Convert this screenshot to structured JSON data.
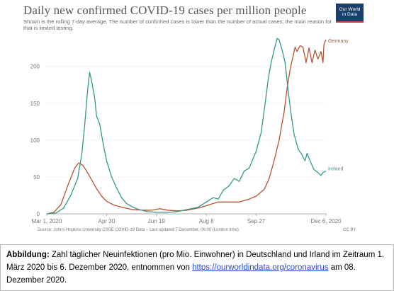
{
  "chart_data": {
    "type": "line",
    "title": "Daily new confirmed COVID-19 cases per million people",
    "subtitle": "Shown is the rolling 7-day average. The number of confirmed cases is lower than the number of actual cases; the main reason for that is limited testing.",
    "xlabel": "",
    "ylabel": "",
    "x_domain": [
      "2020-03-01",
      "2020-12-06"
    ],
    "ylim": [
      0,
      240
    ],
    "x_ticks": [
      "Mar 1, 2020",
      "Apr 30",
      "Jun 19",
      "Aug 8",
      "Sep 27",
      "Dec 6, 2020"
    ],
    "x_tick_dates": [
      "2020-03-01",
      "2020-04-30",
      "2020-06-19",
      "2020-08-08",
      "2020-09-27",
      "2020-12-06"
    ],
    "y_ticks": [
      0,
      50,
      100,
      150,
      200
    ],
    "grid": true,
    "legend": "line-end labels",
    "series": [
      {
        "name": "Germany",
        "color": "#b5542d",
        "points": [
          [
            "2020-03-01",
            0
          ],
          [
            "2020-03-08",
            2
          ],
          [
            "2020-03-15",
            12
          ],
          [
            "2020-03-22",
            38
          ],
          [
            "2020-03-29",
            62
          ],
          [
            "2020-04-02",
            69
          ],
          [
            "2020-04-06",
            66
          ],
          [
            "2020-04-10",
            58
          ],
          [
            "2020-04-15",
            46
          ],
          [
            "2020-04-20",
            34
          ],
          [
            "2020-04-25",
            24
          ],
          [
            "2020-04-30",
            17
          ],
          [
            "2020-05-07",
            12
          ],
          [
            "2020-05-15",
            9
          ],
          [
            "2020-05-25",
            6
          ],
          [
            "2020-06-05",
            5
          ],
          [
            "2020-06-15",
            5
          ],
          [
            "2020-06-22",
            7
          ],
          [
            "2020-06-30",
            5
          ],
          [
            "2020-07-10",
            4
          ],
          [
            "2020-07-20",
            5
          ],
          [
            "2020-07-31",
            8
          ],
          [
            "2020-08-08",
            11
          ],
          [
            "2020-08-20",
            16
          ],
          [
            "2020-08-31",
            16
          ],
          [
            "2020-09-10",
            16
          ],
          [
            "2020-09-20",
            20
          ],
          [
            "2020-09-27",
            24
          ],
          [
            "2020-10-05",
            33
          ],
          [
            "2020-10-10",
            48
          ],
          [
            "2020-10-15",
            72
          ],
          [
            "2020-10-20",
            100
          ],
          [
            "2020-10-25",
            138
          ],
          [
            "2020-10-28",
            170
          ],
          [
            "2020-10-31",
            195
          ],
          [
            "2020-11-02",
            208
          ],
          [
            "2020-11-05",
            226
          ],
          [
            "2020-11-07",
            220
          ],
          [
            "2020-11-10",
            228
          ],
          [
            "2020-11-13",
            226
          ],
          [
            "2020-11-16",
            205
          ],
          [
            "2020-11-19",
            225
          ],
          [
            "2020-11-22",
            205
          ],
          [
            "2020-11-25",
            222
          ],
          [
            "2020-11-28",
            210
          ],
          [
            "2020-12-01",
            220
          ],
          [
            "2020-12-03",
            205
          ],
          [
            "2020-12-04",
            230
          ],
          [
            "2020-12-06",
            236
          ]
        ]
      },
      {
        "name": "Ireland",
        "color": "#33998a",
        "points": [
          [
            "2020-03-01",
            0
          ],
          [
            "2020-03-10",
            1
          ],
          [
            "2020-03-18",
            8
          ],
          [
            "2020-03-25",
            25
          ],
          [
            "2020-04-01",
            48
          ],
          [
            "2020-04-05",
            80
          ],
          [
            "2020-04-08",
            120
          ],
          [
            "2020-04-11",
            168
          ],
          [
            "2020-04-13",
            192
          ],
          [
            "2020-04-15",
            180
          ],
          [
            "2020-04-18",
            158
          ],
          [
            "2020-04-20",
            132
          ],
          [
            "2020-04-23",
            122
          ],
          [
            "2020-04-27",
            92
          ],
          [
            "2020-04-30",
            72
          ],
          [
            "2020-05-05",
            50
          ],
          [
            "2020-05-10",
            35
          ],
          [
            "2020-05-15",
            22
          ],
          [
            "2020-05-20",
            14
          ],
          [
            "2020-05-25",
            10
          ],
          [
            "2020-06-01",
            6
          ],
          [
            "2020-06-10",
            3
          ],
          [
            "2020-06-19",
            2
          ],
          [
            "2020-07-01",
            2
          ],
          [
            "2020-07-10",
            3
          ],
          [
            "2020-07-20",
            6
          ],
          [
            "2020-07-31",
            9
          ],
          [
            "2020-08-08",
            16
          ],
          [
            "2020-08-15",
            22
          ],
          [
            "2020-08-20",
            20
          ],
          [
            "2020-08-25",
            32
          ],
          [
            "2020-08-31",
            38
          ],
          [
            "2020-09-05",
            48
          ],
          [
            "2020-09-10",
            44
          ],
          [
            "2020-09-15",
            58
          ],
          [
            "2020-09-20",
            62
          ],
          [
            "2020-09-27",
            85
          ],
          [
            "2020-10-02",
            110
          ],
          [
            "2020-10-06",
            150
          ],
          [
            "2020-10-09",
            182
          ],
          [
            "2020-10-12",
            205
          ],
          [
            "2020-10-15",
            222
          ],
          [
            "2020-10-18",
            238
          ],
          [
            "2020-10-20",
            236
          ],
          [
            "2020-10-23",
            222
          ],
          [
            "2020-10-26",
            205
          ],
          [
            "2020-10-29",
            168
          ],
          [
            "2020-11-01",
            135
          ],
          [
            "2020-11-04",
            108
          ],
          [
            "2020-11-08",
            88
          ],
          [
            "2020-11-12",
            80
          ],
          [
            "2020-11-15",
            72
          ],
          [
            "2020-11-17",
            82
          ],
          [
            "2020-11-20",
            72
          ],
          [
            "2020-11-24",
            60
          ],
          [
            "2020-11-28",
            56
          ],
          [
            "2020-12-01",
            52
          ],
          [
            "2020-12-03",
            56
          ],
          [
            "2020-12-06",
            58
          ]
        ]
      }
    ]
  },
  "logo": {
    "line1": "Our World",
    "line2": "in Data"
  },
  "source": "Source: Johns Hopkins University CSSE COVID-19 Data – Last updated 7 December, 06:00 (London time)",
  "license": "CC BY",
  "caption": {
    "label": "Abbildung:",
    "text_before_link": " Zahl täglicher Neuinfektionen (pro Mio. Einwohner) in Deutschland und Irland im Zeitraum 1. März 2020 bis 6. Dezember 2020, entnommen von ",
    "link_text": "https://ourworldindata.org/coronavirus",
    "text_after_link": " am 08. Dezember 2020."
  },
  "colors": {
    "grid": "#dddddd",
    "axis_text": "#777777",
    "logo_bg": "#1a3f6b",
    "logo_accent": "#c8402f"
  }
}
